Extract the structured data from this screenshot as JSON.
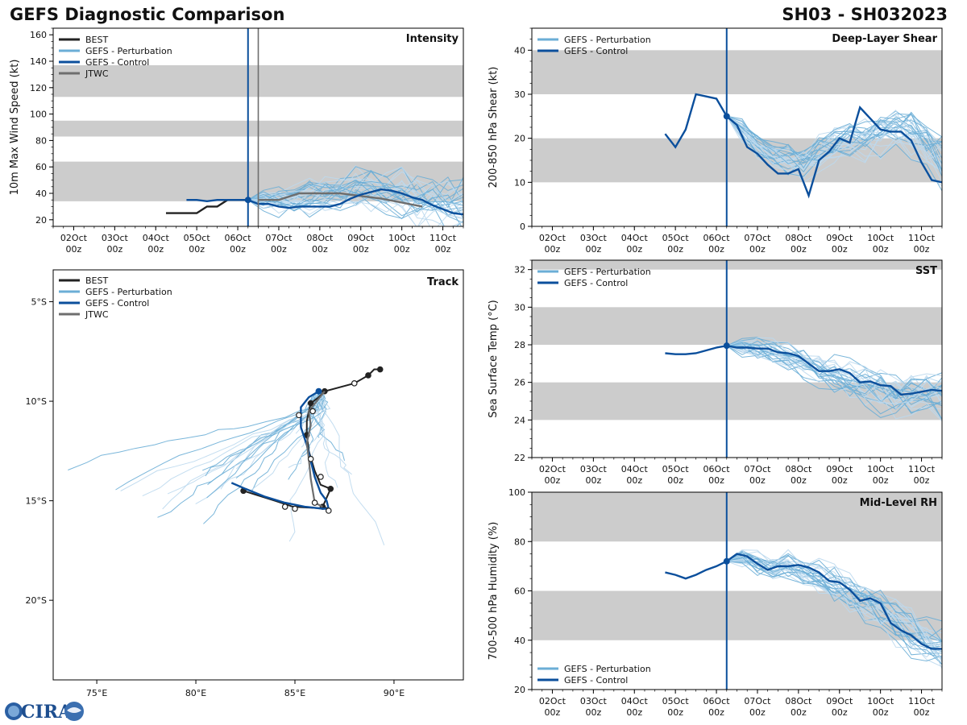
{
  "header": {
    "title": "GEFS Diagnostic Comparison",
    "storm": "SH03 - SH032023"
  },
  "logo": {
    "text": "CIRA"
  },
  "colors": {
    "best": "#222222",
    "perturbation": "#6baed6",
    "perturbation_light": "#bcd9ee",
    "control": "#0b4f9c",
    "jtwc": "#6e6e6e",
    "band": "#cccccc"
  },
  "time_axis": {
    "tick_days": [
      2,
      3,
      4,
      5,
      6,
      7,
      8,
      9,
      10,
      11
    ],
    "tick_labels": [
      [
        "02Oct",
        "00z"
      ],
      [
        "03Oct",
        "00z"
      ],
      [
        "04Oct",
        "00z"
      ],
      [
        "05Oct",
        "00z"
      ],
      [
        "06Oct",
        "00z"
      ],
      [
        "07Oct",
        "00z"
      ],
      [
        "08Oct",
        "00z"
      ],
      [
        "09Oct",
        "00z"
      ],
      [
        "10Oct",
        "00z"
      ],
      [
        "11Oct",
        "00z"
      ]
    ],
    "range_days": [
      1.5,
      11.5
    ],
    "init_day": 6.25,
    "jtwc_init_day": 6.5
  },
  "chart_data": [
    {
      "id": "intensity",
      "type": "line",
      "title": "Intensity",
      "ylabel": "10m Max Wind Speed (kt)",
      "ylim": [
        15,
        165
      ],
      "yticks": [
        20,
        40,
        60,
        80,
        100,
        120,
        140,
        160
      ],
      "bands": [
        [
          34,
          64
        ],
        [
          83,
          95
        ],
        [
          113,
          137
        ]
      ],
      "legend": [
        "BEST",
        "GEFS - Perturbation",
        "GEFS - Control",
        "JTWC"
      ],
      "best": {
        "x": [
          4.25,
          4.5,
          4.75,
          5.0,
          5.25,
          5.5,
          5.75,
          6.0,
          6.25
        ],
        "y": [
          25,
          25,
          25,
          25,
          30,
          30,
          35,
          35,
          35
        ]
      },
      "control": {
        "x": [
          4.75,
          5.0,
          5.25,
          5.5,
          5.75,
          6.0,
          6.25,
          6.5,
          6.75,
          7.0,
          7.25,
          7.5,
          7.75,
          8.0,
          8.25,
          8.5,
          8.75,
          9.0,
          9.25,
          9.5,
          9.75,
          10.0,
          10.25,
          10.5,
          10.75,
          11.0,
          11.25,
          11.5
        ],
        "y": [
          35,
          35,
          34,
          35,
          35,
          35,
          35,
          32,
          32,
          30,
          29,
          30,
          30,
          30,
          30,
          32,
          36,
          39,
          41,
          43,
          42,
          40,
          37,
          35,
          31,
          28,
          25,
          24
        ]
      },
      "jtwc": {
        "x": [
          6.5,
          7.0,
          7.5,
          8.0,
          8.5,
          9.0,
          9.5,
          10.0,
          10.5
        ],
        "y": [
          35,
          35,
          40,
          40,
          40,
          38,
          36,
          33,
          30
        ]
      },
      "perturbation_base": [
        35,
        36,
        35,
        34,
        36,
        38,
        40,
        42,
        43,
        40,
        38,
        35,
        33,
        31,
        30
      ],
      "perturbation_start": 6.25,
      "init_value": 35
    },
    {
      "id": "shear",
      "type": "line",
      "title": "Deep-Layer Shear",
      "ylabel": "200-850 hPa Shear (kt)",
      "ylim": [
        0,
        45
      ],
      "yticks": [
        0,
        10,
        20,
        30,
        40
      ],
      "bands": [
        [
          10,
          20
        ],
        [
          30,
          40
        ]
      ],
      "legend": [
        "GEFS - Perturbation",
        "GEFS - Control"
      ],
      "control": {
        "x": [
          4.75,
          5.0,
          5.25,
          5.5,
          5.75,
          6.0,
          6.25,
          6.5,
          6.75,
          7.0,
          7.25,
          7.5,
          7.75,
          8.0,
          8.25,
          8.5,
          8.75,
          9.0,
          9.25,
          9.5,
          9.75,
          10.0,
          10.25,
          10.5,
          10.75,
          11.0,
          11.25,
          11.5
        ],
        "y": [
          21,
          18,
          22,
          30,
          29.5,
          29,
          25,
          23,
          18,
          16.5,
          14,
          12,
          12,
          13,
          7,
          15,
          17,
          20,
          19,
          27,
          24.5,
          22,
          21.5,
          21.5,
          19.5,
          14.5,
          10.5,
          10
        ]
      },
      "perturbation_base": [
        25,
        22,
        18,
        16,
        15,
        14,
        16,
        18,
        19,
        20,
        21,
        22,
        21,
        18,
        15
      ],
      "perturbation_start": 6.25,
      "init_value": 25
    },
    {
      "id": "track",
      "type": "line",
      "title": "Track",
      "xticks": [
        75,
        80,
        85,
        90
      ],
      "xtick_labels": [
        "75°E",
        "80°E",
        "85°E",
        "90°E"
      ],
      "yticks": [
        -5,
        -10,
        -15,
        -20
      ],
      "ytick_labels": [
        "5°S",
        "10°S",
        "15°S",
        "20°S"
      ],
      "xlim": [
        72.8,
        93.5
      ],
      "ylim": [
        -24,
        -3.4
      ],
      "legend": [
        "BEST",
        "GEFS - Perturbation",
        "GEFS - Control",
        "JTWC"
      ],
      "best": {
        "lon": [
          89.3,
          89.0,
          88.7,
          88.0,
          86.5,
          86.2,
          85.8,
          85.7,
          85.6,
          85.6,
          85.7,
          86.0,
          86.3,
          86.8,
          86.4,
          86.7,
          84.9,
          84.0,
          82.4
        ],
        "lat": [
          -8.4,
          -8.4,
          -8.7,
          -9.1,
          -9.5,
          -9.8,
          -10.1,
          -10.5,
          -11.0,
          -11.7,
          -12.5,
          -13.5,
          -14.2,
          -14.4,
          -15.3,
          -15.4,
          -15.3,
          -15.0,
          -14.5
        ],
        "dots_idx": [
          0,
          2,
          4,
          6,
          9,
          13,
          14,
          18
        ]
      },
      "control": {
        "lon": [
          86.2,
          85.7,
          85.3,
          85.3,
          85.6,
          85.8,
          86.0,
          86.3,
          86.6,
          86.7,
          86.4,
          85.5,
          84.5,
          83.5,
          82.5,
          81.8
        ],
        "lat": [
          -9.5,
          -9.8,
          -10.3,
          -11.3,
          -12.2,
          -13.0,
          -13.8,
          -14.6,
          -15.0,
          -15.4,
          -15.4,
          -15.3,
          -15.1,
          -14.8,
          -14.4,
          -14.1
        ]
      },
      "jtwc": {
        "lon": [
          86.5,
          85.7,
          85.8,
          85.6,
          85.7,
          85.8,
          86.0,
          86.4
        ],
        "lat": [
          -9.5,
          -10.5,
          -11.2,
          -12.1,
          -12.9,
          -13.9,
          -15.1,
          -15.3
        ],
        "open_pts_lon": [
          88.0,
          85.9,
          85.2,
          85.8,
          86.3,
          86.0,
          86.7,
          84.5,
          85.0
        ],
        "open_pts_lat": [
          -9.1,
          -10.5,
          -10.7,
          -12.9,
          -13.8,
          -15.1,
          -15.5,
          -15.3,
          -15.4
        ]
      },
      "init_lon": 86.2,
      "init_lat": -9.5
    },
    {
      "id": "sst",
      "type": "line",
      "title": "SST",
      "ylabel": "Sea Surface Temp (°C)",
      "ylim": [
        22,
        32.5
      ],
      "yticks": [
        22,
        24,
        26,
        28,
        30,
        32
      ],
      "bands": [
        [
          24,
          26
        ],
        [
          28,
          30
        ],
        [
          32,
          33
        ]
      ],
      "legend": [
        "GEFS - Perturbation",
        "GEFS - Control"
      ],
      "control": {
        "x": [
          4.75,
          5.0,
          5.25,
          5.5,
          5.75,
          6.0,
          6.25,
          6.5,
          6.75,
          7.0,
          7.25,
          7.5,
          7.75,
          8.0,
          8.25,
          8.5,
          8.75,
          9.0,
          9.25,
          9.5,
          9.75,
          10.0,
          10.25,
          10.5,
          10.75,
          11.0,
          11.25,
          11.5
        ],
        "y": [
          27.55,
          27.5,
          27.5,
          27.55,
          27.7,
          27.85,
          27.95,
          27.85,
          27.85,
          27.8,
          27.8,
          27.6,
          27.55,
          27.4,
          27.0,
          26.6,
          26.6,
          26.7,
          26.5,
          26.0,
          26.05,
          25.85,
          25.8,
          25.35,
          25.4,
          25.5,
          25.6,
          25.55
        ]
      },
      "perturbation_base": [
        27.95,
        27.9,
        27.8,
        27.6,
        27.3,
        27.0,
        26.7,
        26.4,
        26.1,
        25.8,
        25.5,
        25.3,
        25.3,
        25.3,
        25.2
      ],
      "perturbation_start": 6.25,
      "init_value": 27.95
    },
    {
      "id": "rh",
      "type": "line",
      "title": "Mid-Level RH",
      "ylabel": "700-500 hPa Humidity (%)",
      "ylim": [
        20,
        100
      ],
      "yticks": [
        20,
        40,
        60,
        80,
        100
      ],
      "bands": [
        [
          40,
          60
        ],
        [
          80,
          100
        ]
      ],
      "legend": [
        "GEFS - Perturbation",
        "GEFS - Control"
      ],
      "control": {
        "x": [
          4.75,
          5.0,
          5.25,
          5.5,
          5.75,
          6.0,
          6.25,
          6.5,
          6.75,
          7.0,
          7.25,
          7.5,
          7.75,
          8.0,
          8.25,
          8.5,
          8.75,
          9.0,
          9.25,
          9.5,
          9.75,
          10.0,
          10.25,
          10.5,
          10.75,
          11.0,
          11.25,
          11.5
        ],
        "y": [
          67.5,
          66.5,
          65,
          66.5,
          68.5,
          70,
          72,
          75,
          74,
          71,
          68.5,
          70,
          70,
          70.5,
          69.5,
          67.5,
          64,
          63.5,
          60.5,
          56,
          57,
          55,
          47,
          44,
          42,
          38.5,
          36.5,
          36.5
        ]
      },
      "perturbation_base": [
        72,
        74,
        72,
        70,
        71,
        69,
        66,
        63,
        60,
        57,
        53,
        48,
        44,
        40,
        36
      ],
      "perturbation_start": 6.25,
      "init_value": 72
    }
  ]
}
